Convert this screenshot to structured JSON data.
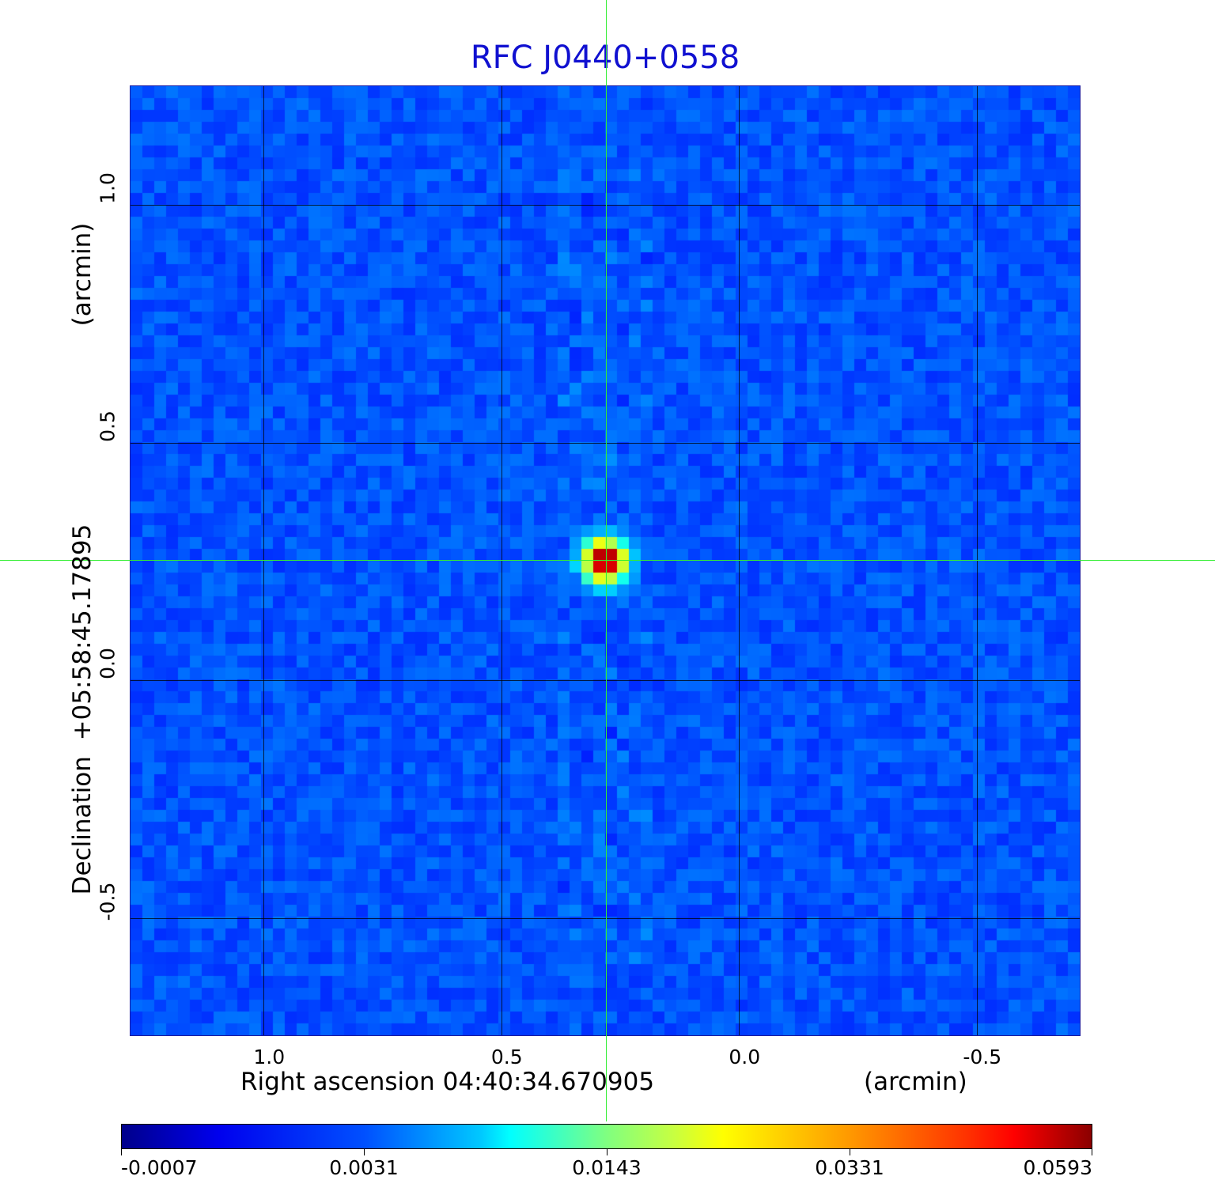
{
  "chart_data": {
    "type": "heatmap",
    "title": "RFC J0440+0558",
    "xlabel": "Right ascension  04:40:34.670905",
    "xunit": "(arcmin)",
    "ylabel": "Declination  +05:58:45.17895",
    "yunit": "(arcmin)",
    "xlim": [
      1.28,
      -0.72
    ],
    "ylim": [
      -0.75,
      1.25
    ],
    "x_ticks": [
      "1.0",
      "0.5",
      "0.0",
      "-0.5"
    ],
    "x_tick_values": [
      1.0,
      0.5,
      0.0,
      -0.5
    ],
    "y_ticks": [
      "1.0",
      "0.5",
      "0.0",
      "-0.5"
    ],
    "y_tick_values": [
      1.0,
      0.5,
      0.0,
      -0.5
    ],
    "grid": true,
    "colormap": "jet",
    "colorbar_labels": [
      "-0.0007",
      "0.0031",
      "0.0143",
      "0.0331",
      "0.0593"
    ],
    "colorbar_range": [
      -0.0007,
      0.0593
    ],
    "source_peak": {
      "x": 0.28,
      "y": 0.25,
      "value": 0.0593
    },
    "crosshair": {
      "x": 0.28,
      "y": 0.25,
      "color": "#33ee33"
    },
    "colors": {
      "title": "#1010d0",
      "background_map": "#1040f0"
    }
  }
}
